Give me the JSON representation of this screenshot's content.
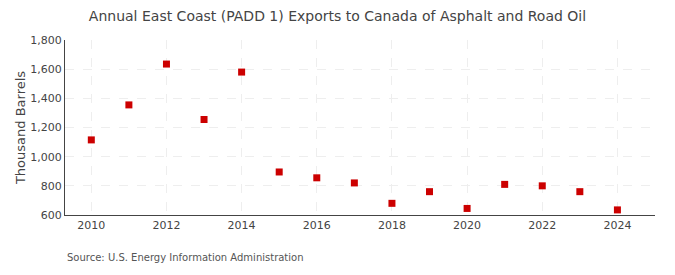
{
  "chart_data": {
    "type": "scatter",
    "title": "Annual East Coast (PADD 1) Exports to Canada of Asphalt and Road Oil",
    "ylabel": "Thousand Barrels",
    "annotations": [
      "Source: U.S. Energy Information Administration"
    ],
    "x": [
      2010,
      2011,
      2012,
      2013,
      2014,
      2015,
      2016,
      2017,
      2018,
      2019,
      2020,
      2021,
      2022,
      2023,
      2024
    ],
    "values": [
      1115,
      1355,
      1635,
      1255,
      1580,
      895,
      855,
      820,
      680,
      760,
      645,
      810,
      800,
      760,
      635
    ],
    "color": "#cc0000",
    "marker": "square",
    "xlim": [
      2009.3,
      2025.0
    ],
    "xticks": [
      2010,
      2012,
      2014,
      2016,
      2018,
      2020,
      2022,
      2024
    ],
    "ylim": [
      600,
      1800
    ],
    "yticks": [
      600,
      800,
      {
        "value": 1000,
        "label": "1,000"
      },
      {
        "value": 1200,
        "label": "1,200"
      },
      {
        "value": 1400,
        "label": "1,400"
      },
      {
        "value": 1600,
        "label": "1,600"
      },
      {
        "value": 1800,
        "label": "1,800"
      }
    ],
    "grid": true
  }
}
